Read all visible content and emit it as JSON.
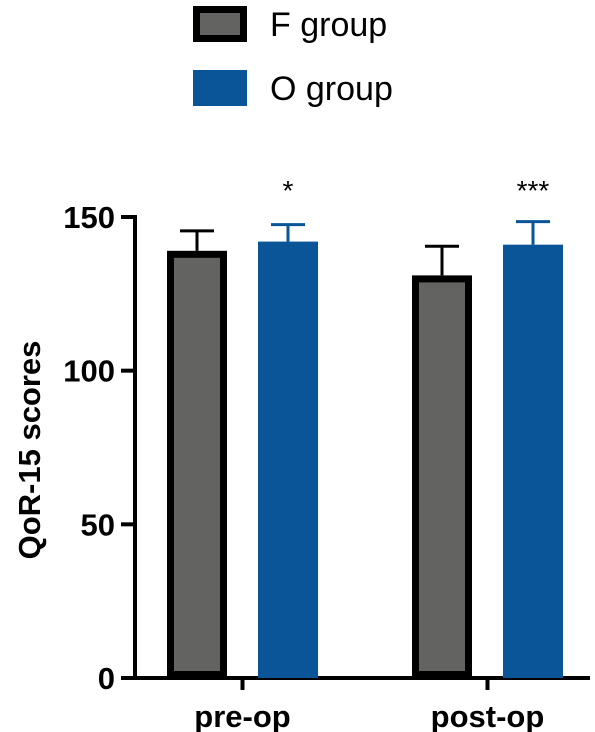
{
  "chart_data": {
    "type": "bar",
    "categories": [
      "pre-op",
      "post-op"
    ],
    "series": [
      {
        "name": "F group",
        "values": [
          139,
          131
        ],
        "errors": [
          6.5,
          9.5
        ],
        "color": "#636361",
        "edge_color": "#000000"
      },
      {
        "name": "O group",
        "values": [
          142,
          141
        ],
        "errors": [
          5.5,
          7.5
        ],
        "color": "#0a5598",
        "edge_color": "#0a5598"
      }
    ],
    "significance": [
      "*",
      "***"
    ],
    "ylabel": "QoR-15 scores",
    "xlabel": "",
    "ylim": [
      0,
      150
    ],
    "yticks": [
      0,
      50,
      100,
      150
    ],
    "legend_position": "top-center",
    "grid": false
  }
}
